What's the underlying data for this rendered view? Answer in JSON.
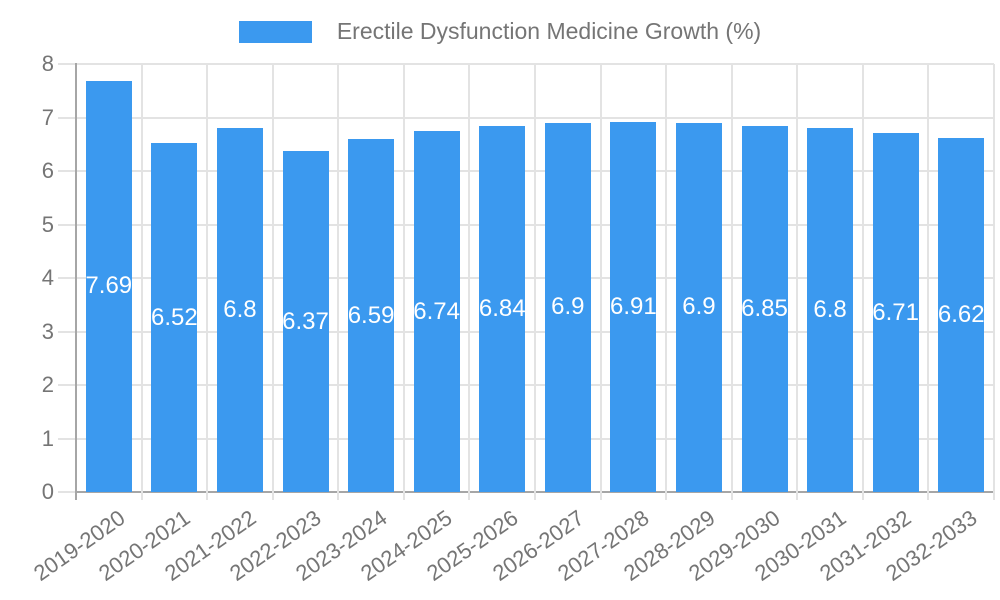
{
  "chart_data": {
    "type": "bar",
    "title": "Erectile Dysfunction Medicine Growth (%)",
    "categories": [
      "2019-2020",
      "2020-2021",
      "2021-2022",
      "2022-2023",
      "2023-2024",
      "2024-2025",
      "2025-2026",
      "2026-2027",
      "2027-2028",
      "2028-2029",
      "2029-2030",
      "2030-2031",
      "2031-2032",
      "2032-2033"
    ],
    "values": [
      7.69,
      6.52,
      6.8,
      6.37,
      6.59,
      6.74,
      6.84,
      6.9,
      6.91,
      6.9,
      6.85,
      6.8,
      6.71,
      6.62
    ],
    "value_labels": [
      "7.69",
      "6.52",
      "6.8",
      "6.37",
      "6.59",
      "6.74",
      "6.84",
      "6.9",
      "6.91",
      "6.9",
      "6.85",
      "6.8",
      "6.71",
      "6.62"
    ],
    "xlabel": "",
    "ylabel": "",
    "ylim": [
      0,
      8
    ],
    "yticks": [
      "0",
      "1",
      "2",
      "3",
      "4",
      "5",
      "6",
      "7",
      "8"
    ],
    "grid": "on",
    "legend_position": "top",
    "colors": {
      "bar": "#3b99ef",
      "value_label": "#ffffff",
      "axis_text": "#757575",
      "gridline": "#e3e3e3",
      "axis_line": "#a6a6a6",
      "background": "#ffffff"
    }
  }
}
